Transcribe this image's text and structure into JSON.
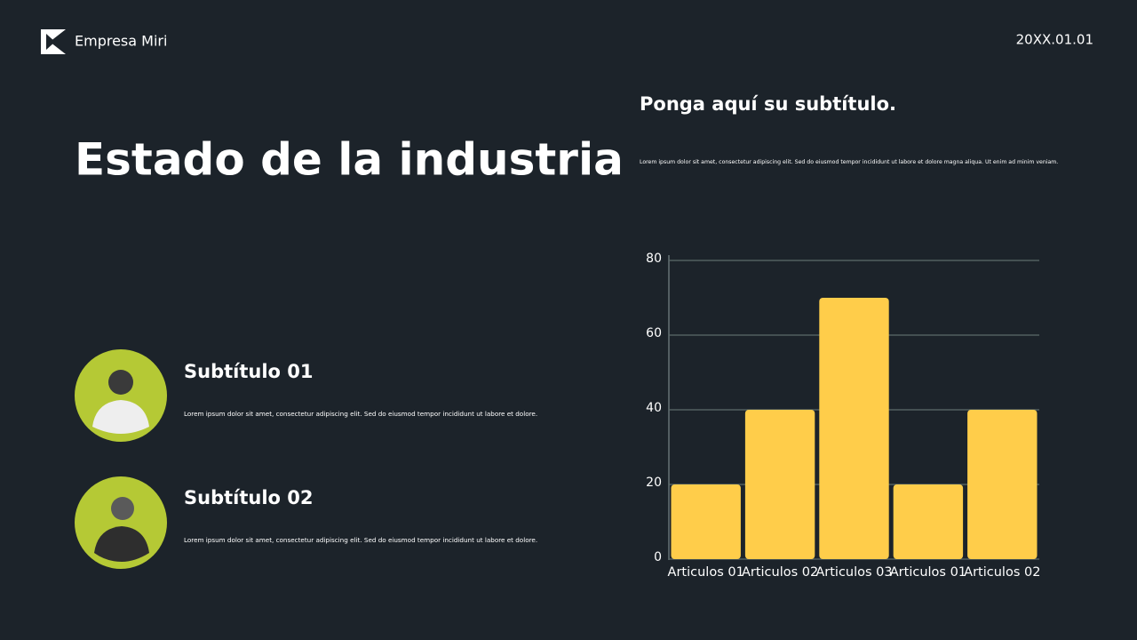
{
  "header": {
    "company": "Empresa Miri",
    "date": "20XX.01.01"
  },
  "title": "Estado de la industria",
  "subtitle": "Ponga aquí su subtítulo.",
  "description": "Lorem ipsum dolor sit amet, consectetur adipiscing elit. Sed do eiusmod tempor incididunt ut labore et dolore magna aliqua. Ut enim ad minim veniam.",
  "people": [
    {
      "title": "Subtítulo 01",
      "text": "Lorem ipsum dolor sit amet, consectetur adipiscing elit. Sed do eiusmod tempor incididunt ut labore et dolore."
    },
    {
      "title": "Subtítulo 02",
      "text": "Lorem ipsum dolor sit amet, consectetur adipiscing elit. Sed do eiusmod tempor incididunt ut labore et dolore."
    }
  ],
  "chart_data": {
    "type": "bar",
    "categories": [
      "Articulos 01",
      "Articulos 02",
      "Articulos 03",
      "Articulos 01",
      "Articulos 02"
    ],
    "values": [
      20,
      40,
      70,
      20,
      40
    ],
    "color": "#ffcd4a",
    "ylim": [
      0,
      80
    ],
    "yticks": [
      0,
      20,
      40,
      60,
      80
    ],
    "grid": true
  }
}
